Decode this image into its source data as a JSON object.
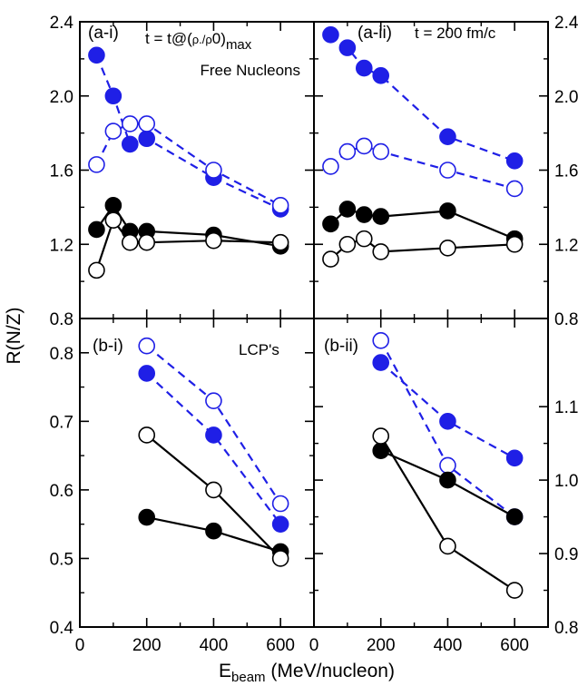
{
  "figure": {
    "ylabel": "R(N/Z)",
    "xlabel_main": "E",
    "xlabel_sub": "beam",
    "xlabel_rest": " (MeV/nucleon)"
  },
  "chart_data": [
    {
      "type": "line",
      "panel": "a-i",
      "tag": "(a-i)",
      "time_pre": "t = t@(",
      "time_rho": "ρ",
      "time_mid": ".",
      "time_rho0": "/ρ",
      "time_zero": "0",
      "time_close": ")",
      "time_sub": "max",
      "label": "Free Nucleons",
      "xlim": [
        0,
        700
      ],
      "ylim": [
        0.8,
        2.4
      ],
      "xticks": [
        0,
        200,
        400,
        600
      ],
      "yticks": [
        0.8,
        1.2,
        1.6,
        2.0,
        2.4
      ],
      "yticklabels": [
        "0.8",
        "1.2",
        "1.6",
        "2.0",
        "2.4"
      ],
      "series": [
        {
          "marker": "filled-blue",
          "line": "dashed-blue",
          "x": [
            50,
            100,
            150,
            200,
            400,
            600
          ],
          "y": [
            2.22,
            2.0,
            1.74,
            1.77,
            1.56,
            1.39
          ]
        },
        {
          "marker": "open-blue",
          "line": "dashed-blue",
          "x": [
            50,
            100,
            150,
            200,
            400,
            600
          ],
          "y": [
            1.63,
            1.81,
            1.85,
            1.85,
            1.6,
            1.41
          ]
        },
        {
          "marker": "filled-black",
          "line": "solid-black",
          "x": [
            50,
            100,
            150,
            200,
            400,
            600
          ],
          "y": [
            1.28,
            1.41,
            1.27,
            1.27,
            1.25,
            1.19
          ]
        },
        {
          "marker": "open-black",
          "line": "solid-black",
          "x": [
            50,
            100,
            150,
            200,
            400,
            600
          ],
          "y": [
            1.06,
            1.33,
            1.21,
            1.21,
            1.22,
            1.21
          ]
        }
      ]
    },
    {
      "type": "line",
      "panel": "a-ii",
      "tag": "(a-ii)",
      "time": "t = 200 fm/c",
      "xlim": [
        0,
        700
      ],
      "ylim": [
        0.8,
        2.4
      ],
      "xticks": [
        0,
        200,
        400,
        600
      ],
      "yticks": [
        0.8,
        1.2,
        1.6,
        2.0,
        2.4
      ],
      "yticklabels": [
        "0.8",
        "1.2",
        "1.6",
        "2.0",
        "2.4"
      ],
      "series": [
        {
          "marker": "filled-blue",
          "line": "dashed-blue",
          "x": [
            50,
            100,
            150,
            200,
            400,
            600
          ],
          "y": [
            2.33,
            2.26,
            2.15,
            2.11,
            1.78,
            1.65
          ]
        },
        {
          "marker": "open-blue",
          "line": "dashed-blue",
          "x": [
            50,
            100,
            150,
            200,
            400,
            600
          ],
          "y": [
            1.62,
            1.7,
            1.73,
            1.7,
            1.6,
            1.5
          ]
        },
        {
          "marker": "filled-black",
          "line": "solid-black",
          "x": [
            50,
            100,
            150,
            200,
            400,
            600
          ],
          "y": [
            1.31,
            1.39,
            1.36,
            1.35,
            1.38,
            1.23
          ]
        },
        {
          "marker": "open-black",
          "line": "solid-black",
          "x": [
            50,
            100,
            150,
            200,
            400,
            600
          ],
          "y": [
            1.12,
            1.2,
            1.23,
            1.16,
            1.18,
            1.2
          ]
        }
      ]
    },
    {
      "type": "line",
      "panel": "b-i",
      "tag": "(b-i)",
      "label": "LCP's",
      "xlim": [
        0,
        700
      ],
      "ylim": [
        0.4,
        0.85
      ],
      "xticks": [
        0,
        200,
        400,
        600
      ],
      "yticks": [
        0.4,
        0.5,
        0.6,
        0.7,
        0.8
      ],
      "yticklabels": [
        "0.4",
        "0.5",
        "0.6",
        "0.7",
        "0.8"
      ],
      "series": [
        {
          "marker": "filled-blue",
          "line": "dashed-blue",
          "x": [
            200,
            400,
            600
          ],
          "y": [
            0.77,
            0.68,
            0.55
          ]
        },
        {
          "marker": "open-blue",
          "line": "dashed-blue",
          "x": [
            200,
            400,
            600
          ],
          "y": [
            0.81,
            0.73,
            0.58
          ]
        },
        {
          "marker": "filled-black",
          "line": "solid-black",
          "x": [
            200,
            400,
            600
          ],
          "y": [
            0.56,
            0.54,
            0.51
          ]
        },
        {
          "marker": "open-black",
          "line": "solid-black",
          "x": [
            200,
            400,
            600
          ],
          "y": [
            0.68,
            0.6,
            0.5
          ]
        }
      ]
    },
    {
      "type": "line",
      "panel": "b-ii",
      "tag": "(b-ii)",
      "xlim": [
        0,
        700
      ],
      "ylim": [
        0.8,
        1.22
      ],
      "xticks": [
        0,
        200,
        400,
        600
      ],
      "yticks": [
        0.8,
        0.9,
        1.0,
        1.1
      ],
      "yticklabels": [
        "0.8",
        "0.9",
        "1.0",
        "1.1"
      ],
      "series": [
        {
          "marker": "filled-blue",
          "line": "dashed-blue",
          "x": [
            200,
            400,
            600
          ],
          "y": [
            1.16,
            1.08,
            1.03
          ]
        },
        {
          "marker": "open-blue",
          "line": "dashed-blue",
          "x": [
            200,
            400,
            600
          ],
          "y": [
            1.19,
            1.02,
            0.95
          ]
        },
        {
          "marker": "filled-black",
          "line": "solid-black",
          "x": [
            200,
            400,
            600
          ],
          "y": [
            1.04,
            1.0,
            0.95
          ]
        },
        {
          "marker": "open-black",
          "line": "solid-black",
          "x": [
            200,
            400,
            600
          ],
          "y": [
            1.06,
            0.91,
            0.85
          ]
        }
      ]
    }
  ]
}
